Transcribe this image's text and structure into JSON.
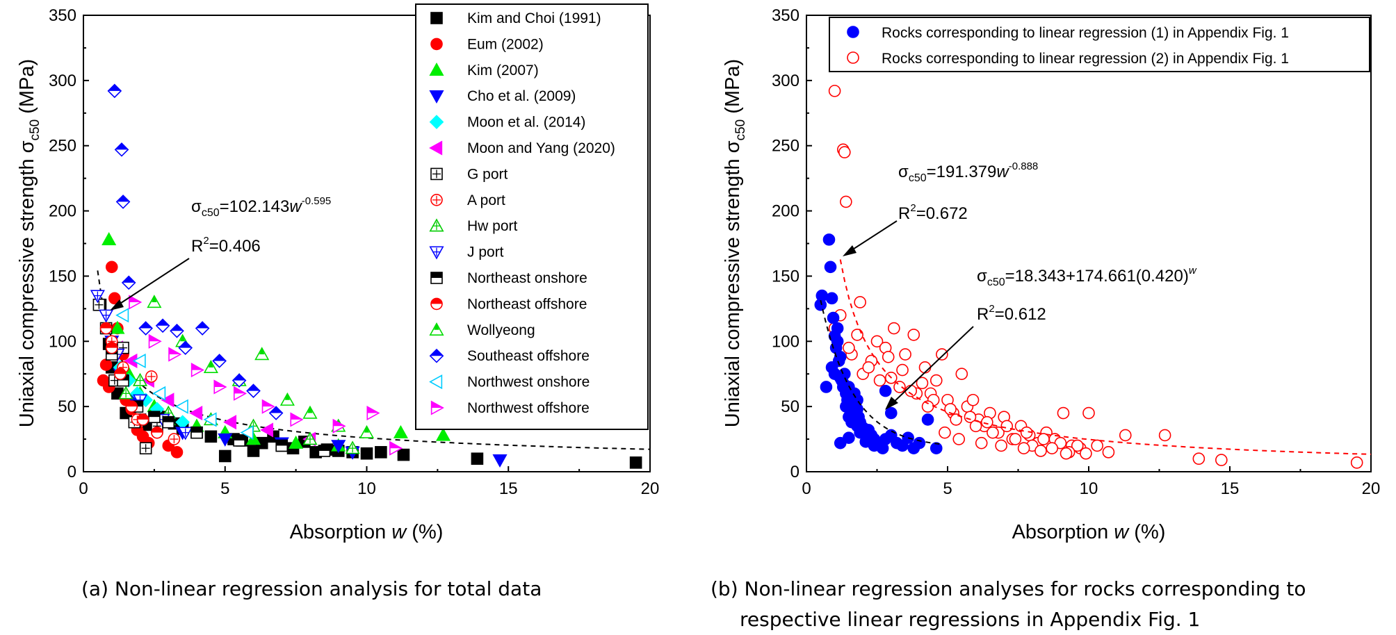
{
  "chart_data": [
    {
      "type": "scatter",
      "caption": "(a) Non-linear regression analysis for total data",
      "xlabel": "Absorption w (%)",
      "ylabel": "Uniaxial compressive strength σc50 (MPa)",
      "xlim": [
        0,
        20
      ],
      "ylim": [
        0,
        350
      ],
      "xticks": [
        0,
        5,
        10,
        15,
        20
      ],
      "yticks": [
        0,
        50,
        100,
        150,
        200,
        250,
        300,
        350
      ],
      "legend_position": "top-right",
      "equation": {
        "sigma": "σ",
        "sub": "c50",
        "rest": "=102.143",
        "var": "w",
        "exp": "-0.595"
      },
      "r2": {
        "prefix": "R",
        "sup": "2",
        "rest": "=0.406"
      },
      "fit": {
        "a": 102.143,
        "b": -0.595,
        "x_from": 0.5,
        "x_to": 20
      },
      "series": [
        {
          "name": "Kim and Choi (1991)",
          "marker": "square",
          "color": "#000000",
          "fill": "full",
          "x": [
            0.6,
            0.9,
            1.0,
            1.2,
            1.5,
            2.0,
            2.3,
            2.6,
            2.9,
            3.2,
            3.5,
            4.0,
            4.5,
            5.0,
            5.3,
            5.6,
            6.0,
            6.3,
            6.7,
            7.0,
            7.4,
            7.8,
            8.2,
            8.6,
            9.0,
            9.5,
            10.0,
            10.5,
            11.3,
            13.9,
            19.5
          ],
          "y": [
            128,
            98,
            80,
            60,
            45,
            40,
            36,
            44,
            42,
            37,
            33,
            30,
            27,
            12,
            25,
            24,
            16,
            22,
            27,
            20,
            18,
            23,
            15,
            17,
            16,
            15,
            14,
            15,
            13,
            10,
            7
          ]
        },
        {
          "name": "Eum (2002)",
          "marker": "circle",
          "color": "#ff0000",
          "fill": "full",
          "x": [
            0.7,
            0.8,
            0.9,
            1.0,
            1.1,
            1.2,
            1.4,
            1.5,
            1.7,
            1.9,
            2.1,
            2.3,
            2.6,
            3.0,
            3.3
          ],
          "y": [
            70,
            82,
            65,
            157,
            133,
            110,
            90,
            55,
            48,
            32,
            27,
            22,
            30,
            20,
            15
          ]
        },
        {
          "name": "Kim (2007)",
          "marker": "triangle-up",
          "color": "#00ee00",
          "fill": "full",
          "x": [
            0.9,
            1.2,
            1.6,
            2.0,
            2.5,
            3.0,
            4.0,
            5.0,
            6.0,
            7.5,
            9.0,
            11.2,
            12.7
          ],
          "y": [
            178,
            110,
            75,
            60,
            50,
            40,
            35,
            30,
            25,
            22,
            20,
            30,
            28
          ]
        },
        {
          "name": "Cho et al. (2009)",
          "marker": "triangle-down",
          "color": "#0000ff",
          "fill": "full",
          "x": [
            1.0,
            1.3,
            1.8,
            2.5,
            3.5,
            5.0,
            7.0,
            9.0,
            9.5,
            14.7
          ],
          "y": [
            100,
            75,
            55,
            38,
            30,
            25,
            22,
            20,
            15,
            9
          ]
        },
        {
          "name": "Moon et al. (2014)",
          "marker": "diamond",
          "color": "#00ffff",
          "fill": "full",
          "x": [
            1.3,
            1.6,
            1.9,
            2.2,
            2.6,
            3.0,
            3.5
          ],
          "y": [
            80,
            70,
            60,
            55,
            48,
            42,
            38
          ]
        },
        {
          "name": "Moon and Yang (2020)",
          "marker": "triangle-left",
          "color": "#ff00ff",
          "fill": "full",
          "x": [
            1.2,
            1.7,
            2.3,
            3.0,
            4.0,
            5.2,
            6.5,
            8.0
          ],
          "y": [
            95,
            85,
            70,
            55,
            45,
            38,
            32,
            25
          ]
        },
        {
          "name": "G port",
          "marker": "square-plus",
          "color": "#000000",
          "fill": "none",
          "x": [
            0.55,
            0.8,
            1.1,
            1.4,
            1.8,
            2.2,
            2.6
          ],
          "y": [
            128,
            110,
            70,
            95,
            38,
            18,
            35
          ]
        },
        {
          "name": "A port",
          "marker": "circle-plus",
          "color": "#ff0000",
          "fill": "none",
          "x": [
            1.0,
            1.4,
            1.9,
            2.4,
            3.2
          ],
          "y": [
            100,
            80,
            40,
            73,
            25
          ]
        },
        {
          "name": "Hw port",
          "marker": "triangle-up-plus",
          "color": "#00cc00",
          "fill": "none",
          "x": [
            1.5,
            2.0,
            3.0,
            4.5,
            6.0,
            8.0,
            9.5
          ],
          "y": [
            60,
            70,
            45,
            40,
            35,
            25,
            18
          ]
        },
        {
          "name": "J port",
          "marker": "triangle-down-plus",
          "color": "#0000ff",
          "fill": "none",
          "x": [
            0.5,
            0.8,
            1.2,
            2.0,
            2.8,
            3.6
          ],
          "y": [
            135,
            120,
            90,
            55,
            40,
            30
          ]
        },
        {
          "name": "Northeast onshore",
          "marker": "square-half",
          "color": "#000000",
          "fill": "half",
          "x": [
            1.0,
            1.4,
            1.9,
            2.5,
            3.0,
            4.0,
            5.5,
            7.0,
            8.5
          ],
          "y": [
            90,
            70,
            50,
            42,
            38,
            30,
            24,
            20,
            16
          ]
        },
        {
          "name": "Northeast offshore",
          "marker": "circle-half",
          "color": "#ff0000",
          "fill": "half",
          "x": [
            0.8,
            1.0,
            1.3,
            1.7,
            2.1,
            2.6
          ],
          "y": [
            110,
            95,
            75,
            50,
            40,
            30
          ]
        },
        {
          "name": "Wollyeong",
          "marker": "triangle-up-half",
          "color": "#00dd00",
          "fill": "half",
          "x": [
            2.5,
            3.5,
            4.5,
            5.5,
            6.3,
            7.2,
            8.0,
            9.0,
            10.0
          ],
          "y": [
            130,
            100,
            80,
            70,
            90,
            55,
            45,
            35,
            30
          ]
        },
        {
          "name": "Southeast offshore",
          "marker": "diamond-half",
          "color": "#0000ff",
          "fill": "half",
          "x": [
            1.1,
            1.35,
            1.4,
            1.6,
            2.2,
            2.8,
            3.3,
            3.6,
            4.2,
            4.8,
            5.5,
            6.0,
            6.8
          ],
          "y": [
            292,
            247,
            207,
            145,
            110,
            112,
            108,
            95,
            110,
            85,
            70,
            62,
            45
          ]
        },
        {
          "name": "Northwest onshore",
          "marker": "triangle-left",
          "color": "#00ccff",
          "fill": "none",
          "x": [
            1.4,
            2.0,
            2.7,
            3.5,
            4.5,
            5.8
          ],
          "y": [
            120,
            85,
            60,
            50,
            40,
            30
          ]
        },
        {
          "name": "Northwest offshore",
          "marker": "triangle-right-half",
          "color": "#ff00ff",
          "fill": "half",
          "x": [
            1.8,
            2.5,
            3.2,
            4.0,
            4.8,
            5.5,
            6.5,
            7.5,
            9.0,
            10.2,
            11.0
          ],
          "y": [
            130,
            100,
            90,
            78,
            65,
            60,
            50,
            40,
            35,
            45,
            18
          ]
        }
      ]
    },
    {
      "type": "scatter",
      "caption": "(b) Non-linear regression analyses for rocks corresponding to respective linear regressions in Appendix Fig. 1",
      "caption_lines": [
        "(b) Non-linear regression analyses for rocks corresponding to",
        "respective linear regressions in Appendix Fig. 1"
      ],
      "xlabel": "Absorption w (%)",
      "ylabel": "Uniaxial compressive strength σc50 (MPa)",
      "xlim": [
        0,
        20
      ],
      "ylim": [
        0,
        350
      ],
      "xticks": [
        0,
        5,
        10,
        15,
        20
      ],
      "yticks": [
        0,
        50,
        100,
        150,
        200,
        250,
        300,
        350
      ],
      "legend_position": "top-right",
      "equation1": {
        "sigma": "σ",
        "sub": "c50",
        "rest": "=191.379",
        "var": "w",
        "exp": "-0.888"
      },
      "r2_1": {
        "prefix": "R",
        "sup": "2",
        "rest": "=0.672"
      },
      "equation2": {
        "sigma": "σ",
        "sub": "c50",
        "rest": "=18.343+174.661(0.420)",
        "exp": "w"
      },
      "r2_2": {
        "prefix": "R",
        "sup": "2",
        "rest": "=0.612"
      },
      "fit1": {
        "a": 191.379,
        "b": -0.888,
        "x_from": 1.2,
        "x_to": 20,
        "color": "#ff0000"
      },
      "fit2": {
        "c": 18.343,
        "a": 174.661,
        "base": 0.42,
        "x_from": 0.5,
        "x_to": 4.8,
        "color": "#000000"
      },
      "series": [
        {
          "name": "Rocks corresponding to linear regression (1) in Appendix Fig. 1",
          "marker": "circle",
          "color": "#0000ff",
          "fill": "full",
          "x": [
            0.5,
            0.55,
            0.7,
            0.8,
            0.85,
            0.9,
            0.95,
            1.0,
            1.05,
            1.1,
            1.15,
            1.2,
            1.25,
            1.3,
            1.35,
            1.4,
            1.45,
            1.5,
            1.55,
            1.6,
            1.65,
            1.7,
            1.75,
            1.8,
            1.85,
            1.9,
            1.95,
            2.0,
            2.05,
            2.1,
            2.15,
            2.2,
            2.3,
            2.4,
            2.5,
            2.6,
            2.7,
            2.8,
            3.0,
            3.2,
            3.4,
            3.6,
            3.8,
            4.0,
            4.3,
            4.6,
            0.9,
            1.0,
            1.1,
            1.2,
            1.3,
            1.4,
            1.5,
            1.6,
            1.7,
            1.8,
            1.9,
            2.0,
            2.2,
            2.4,
            2.6,
            2.8,
            3.0,
            1.2,
            1.5,
            1.8,
            2.1
          ],
          "y": [
            128,
            135,
            65,
            178,
            157,
            133,
            118,
            104,
            95,
            110,
            85,
            88,
            70,
            65,
            75,
            60,
            55,
            65,
            50,
            52,
            58,
            45,
            40,
            48,
            42,
            38,
            35,
            30,
            33,
            28,
            26,
            32,
            28,
            25,
            22,
            20,
            18,
            25,
            28,
            22,
            20,
            26,
            18,
            22,
            40,
            18,
            80,
            75,
            100,
            72,
            68,
            50,
            42,
            38,
            60,
            35,
            30,
            33,
            24,
            20,
            21,
            62,
            45,
            22,
            26,
            55,
            23
          ]
        },
        {
          "name": "Rocks corresponding to linear regression (2) in Appendix Fig. 1",
          "marker": "circle",
          "color": "#ff0000",
          "fill": "none",
          "x": [
            1.0,
            1.3,
            1.35,
            1.4,
            1.0,
            1.2,
            1.6,
            1.9,
            2.3,
            2.5,
            2.8,
            3.1,
            3.5,
            3.8,
            4.2,
            4.4,
            4.6,
            4.8,
            5.0,
            5.2,
            5.5,
            5.7,
            5.9,
            6.1,
            6.3,
            6.5,
            6.8,
            7.0,
            7.3,
            7.6,
            7.9,
            8.2,
            8.5,
            8.8,
            9.1,
            9.4,
            9.7,
            10.0,
            10.3,
            10.7,
            11.3,
            12.7,
            13.9,
            14.7,
            19.5,
            2.0,
            2.6,
            3.3,
            3.9,
            4.5,
            5.1,
            5.8,
            6.4,
            7.1,
            7.8,
            8.4,
            9.0,
            9.6,
            1.5,
            2.2,
            3.0,
            3.7,
            4.3,
            5.3,
            6.0,
            6.6,
            7.4,
            8.0,
            8.7,
            9.3,
            9.9,
            4.9,
            5.4,
            6.2,
            6.9,
            7.7,
            8.3,
            9.2,
            4.1,
            3.4,
            2.9,
            1.8
          ],
          "y": [
            292,
            247,
            245,
            207,
            110,
            120,
            90,
            130,
            85,
            100,
            95,
            110,
            90,
            105,
            80,
            60,
            70,
            90,
            55,
            45,
            75,
            50,
            55,
            40,
            35,
            45,
            30,
            42,
            25,
            35,
            28,
            22,
            30,
            25,
            45,
            20,
            18,
            45,
            20,
            15,
            28,
            28,
            10,
            9,
            7,
            75,
            70,
            65,
            60,
            55,
            48,
            42,
            38,
            35,
            30,
            25,
            22,
            20,
            95,
            80,
            72,
            62,
            50,
            40,
            35,
            30,
            25,
            20,
            18,
            15,
            14,
            30,
            25,
            22,
            20,
            18,
            16,
            14,
            68,
            78,
            88,
            105
          ]
        }
      ]
    }
  ]
}
